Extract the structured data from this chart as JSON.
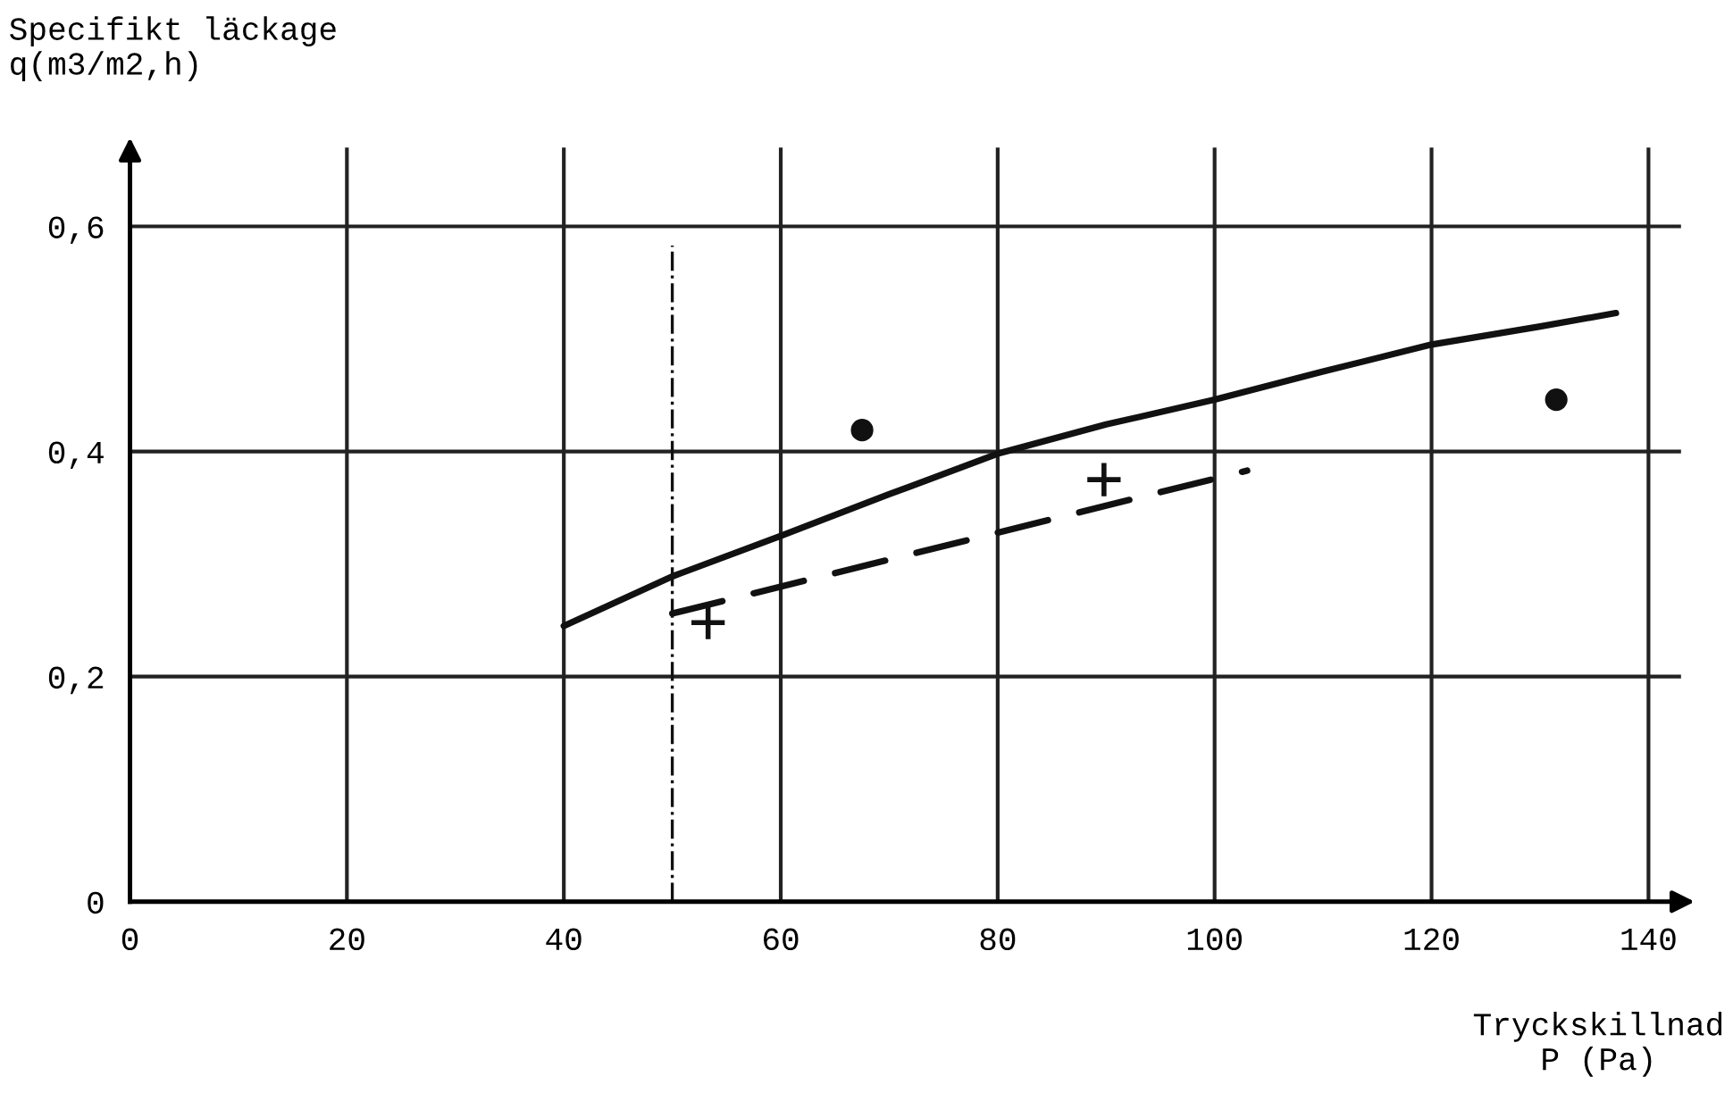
{
  "chart_data": {
    "type": "line",
    "ylabel": "Specifikt läckage\nq(m3/m2,h)",
    "xlabel": "Tryckskillnad\nP (Pa)",
    "xlim": [
      0,
      143
    ],
    "ylim": [
      0,
      0.67
    ],
    "xticks": [
      0,
      20,
      40,
      60,
      80,
      100,
      120,
      140
    ],
    "yticks": [
      {
        "value": 0,
        "label": "0"
      },
      {
        "value": 0.2,
        "label": "0,2"
      },
      {
        "value": 0.4,
        "label": "0,4"
      },
      {
        "value": 0.6,
        "label": "0,6"
      }
    ],
    "grid": true,
    "legend": false,
    "series": [
      {
        "color": "#111111",
        "line_style": "solid",
        "marker": "none",
        "x": [
          40,
          50,
          60,
          70,
          80,
          90,
          100,
          110,
          120,
          130,
          137
        ],
        "values": [
          0.245,
          0.289,
          0.325,
          0.362,
          0.398,
          0.424,
          0.446,
          0.471,
          0.495,
          0.511,
          0.523
        ]
      },
      {
        "color": "#111111",
        "line_style": "dashed",
        "marker": "none",
        "x": [
          50,
          103
        ],
        "values": [
          0.256,
          0.383
        ]
      },
      {
        "type": "scatter",
        "color": "#111111",
        "marker": "circle",
        "x": [
          67.5,
          131.5
        ],
        "values": [
          0.419,
          0.446
        ]
      },
      {
        "type": "scatter",
        "color": "#111111",
        "marker": "cross",
        "x": [
          53.3,
          89.8
        ],
        "values": [
          0.248,
          0.375
        ]
      }
    ],
    "ref_lines": [
      {
        "axis": "x",
        "value": 50,
        "label": null,
        "color": "#111111",
        "line_style": "dashdot"
      }
    ]
  }
}
